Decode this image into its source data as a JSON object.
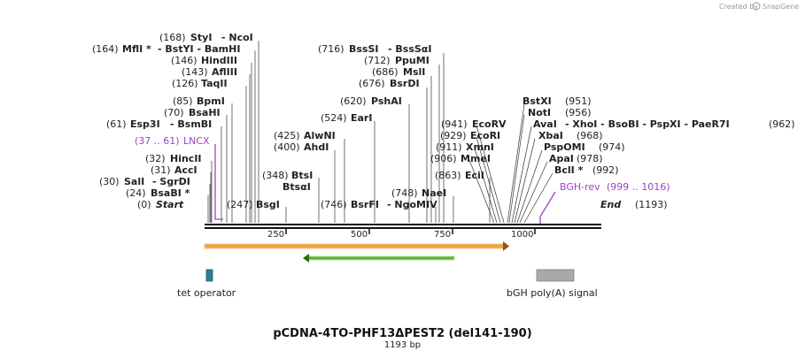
{
  "credit": {
    "created_by": "Created by",
    "brand": "SnapGene"
  },
  "map": {
    "title": "pCDNA-4TO-PHF13ΔPEST2 (del141-190)",
    "length_label": "1193 bp",
    "start_label": "Start",
    "start_pos": "(0)",
    "end_label": "End",
    "end_pos": "(1193)",
    "ticks": [
      "250",
      "500",
      "750",
      "1000"
    ]
  },
  "sites": [
    {
      "pos": "(168)",
      "name": "StyI",
      "extra": "- NcoI"
    },
    {
      "pos": "(164)",
      "name": "MflI *",
      "extra": "- BstYI - BamHI"
    },
    {
      "pos": "(146)",
      "name": "HindIII",
      "extra": ""
    },
    {
      "pos": "(143)",
      "name": "AflIII",
      "extra": ""
    },
    {
      "pos": "(126)",
      "name": "TaqII",
      "extra": ""
    },
    {
      "pos": "(85)",
      "name": "BpmI",
      "extra": ""
    },
    {
      "pos": "(70)",
      "name": "BsaHI",
      "extra": ""
    },
    {
      "pos": "(61)",
      "name": "Esp3I",
      "extra": "- BsmBI"
    },
    {
      "pos": "(32)",
      "name": "HincII",
      "extra": ""
    },
    {
      "pos": "(31)",
      "name": "AccI",
      "extra": ""
    },
    {
      "pos": "(30)",
      "name": "SalI",
      "extra": "- SgrDI"
    },
    {
      "pos": "(24)",
      "name": "BsaBI *",
      "extra": ""
    },
    {
      "pos": "(716)",
      "name": "BssSI",
      "extra": "- BssSαI"
    },
    {
      "pos": "(712)",
      "name": "PpuMI",
      "extra": ""
    },
    {
      "pos": "(686)",
      "name": "MslI",
      "extra": ""
    },
    {
      "pos": "(676)",
      "name": "BsrDI",
      "extra": ""
    },
    {
      "pos": "(620)",
      "name": "PshAI",
      "extra": ""
    },
    {
      "pos": "(524)",
      "name": "EarI",
      "extra": ""
    },
    {
      "pos": "(425)",
      "name": "AlwNI",
      "extra": ""
    },
    {
      "pos": "(400)",
      "name": "AhdI",
      "extra": ""
    },
    {
      "pos": "(348)",
      "name": "BtsI",
      "extra": ""
    },
    {
      "pos": "",
      "name": "BtsαI",
      "extra": ""
    },
    {
      "pos": "(247)",
      "name": "BsgI",
      "extra": ""
    },
    {
      "pos": "(746)",
      "name": "BsrFI",
      "extra": "- NgoMIV"
    },
    {
      "pos": "(748)",
      "name": "NaeI",
      "extra": ""
    },
    {
      "pos": "(941)",
      "name": "EcoRV",
      "extra": ""
    },
    {
      "pos": "(929)",
      "name": "EcoRI",
      "extra": ""
    },
    {
      "pos": "(911)",
      "name": "XmnI",
      "extra": ""
    },
    {
      "pos": "(906)",
      "name": "MmeI",
      "extra": ""
    },
    {
      "pos": "(863)",
      "name": "EciI",
      "extra": ""
    },
    {
      "pos": "(951)",
      "name": "BstXI",
      "extra": "",
      "right": true
    },
    {
      "pos": "(956)",
      "name": "NotI",
      "extra": "",
      "right": true
    },
    {
      "pos": "(962)",
      "name": "AvaI",
      "extra": "- XhoI - BsoBI - PspXI - PaeR7I",
      "right": true
    },
    {
      "pos": "(968)",
      "name": "XbaI",
      "extra": "",
      "right": true
    },
    {
      "pos": "(974)",
      "name": "PspOMI",
      "extra": "",
      "right": true
    },
    {
      "pos": "(978)",
      "name": "ApaI",
      "extra": "",
      "right": true
    },
    {
      "pos": "(992)",
      "name": "BclI *",
      "extra": "",
      "right": true
    }
  ],
  "primers": [
    {
      "range": "(37 .. 61)",
      "name": "LNCX"
    },
    {
      "name": "BGH-rev",
      "range": "(999 .. 1016)"
    }
  ],
  "features": [
    {
      "name": "tet operator"
    },
    {
      "name": "bGH poly(A) signal"
    }
  ],
  "colors": {
    "orange_arrow": "#f0a43a",
    "green_arrow": "#5ab52a",
    "tet_operator": "#2a7f95",
    "bgh_signal": "#a7a9ac",
    "primer": "#a23fc8"
  }
}
